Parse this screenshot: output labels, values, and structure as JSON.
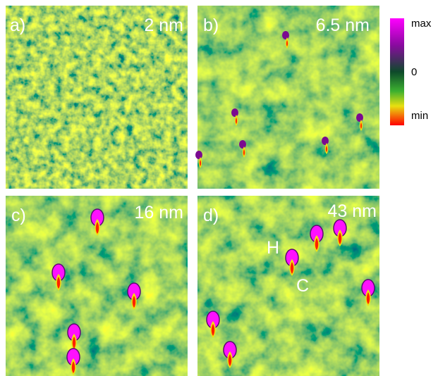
{
  "panels": [
    {
      "label": "a)",
      "thickness": "2 nm"
    },
    {
      "label": "b)",
      "thickness": "6.5 nm"
    },
    {
      "label": "c)",
      "thickness": "16 nm"
    },
    {
      "label": "d)",
      "thickness": "43 nm",
      "annotations": [
        "H",
        "C"
      ]
    }
  ],
  "colorbar": {
    "top": "max",
    "middle": "0",
    "bottom": "min"
  }
}
